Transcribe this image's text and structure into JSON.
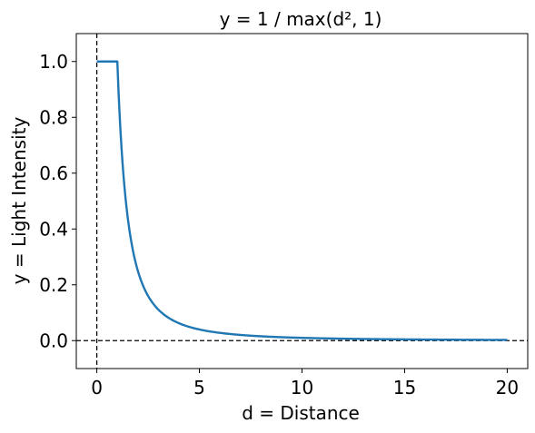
{
  "chart_data": {
    "type": "line",
    "title": "y = 1 / max(d², 1)",
    "xlabel": "d = Distance",
    "ylabel": "y = Light Intensity",
    "xlim": [
      -1,
      21
    ],
    "ylim": [
      -0.1,
      1.1
    ],
    "x_ticks": [
      0,
      5,
      10,
      15,
      20
    ],
    "y_ticks": [
      0.0,
      0.2,
      0.4,
      0.6,
      0.8,
      1.0
    ],
    "x_tick_labels": [
      "0",
      "5",
      "10",
      "15",
      "20"
    ],
    "y_tick_labels": [
      "0.0",
      "0.2",
      "0.4",
      "0.6",
      "0.8",
      "1.0"
    ],
    "grid": false,
    "reference_lines": [
      {
        "orientation": "vertical",
        "value": 0,
        "style": "dashed",
        "color": "#000000"
      },
      {
        "orientation": "horizontal",
        "value": 0,
        "style": "dashed",
        "color": "#000000"
      }
    ],
    "series": [
      {
        "color": "#1f77b4",
        "x": [
          0,
          0.5,
          1.0,
          1.25,
          1.5,
          1.75,
          2.0,
          2.5,
          3.0,
          3.5,
          4.0,
          5.0,
          6.0,
          7.0,
          8.0,
          10.0,
          12.0,
          14.0,
          16.0,
          18.0,
          20.0
        ],
        "y": [
          1.0,
          1.0,
          1.0,
          0.64,
          0.444,
          0.327,
          0.25,
          0.16,
          0.111,
          0.082,
          0.0625,
          0.04,
          0.028,
          0.02,
          0.016,
          0.01,
          0.007,
          0.005,
          0.004,
          0.003,
          0.0025
        ]
      }
    ]
  }
}
